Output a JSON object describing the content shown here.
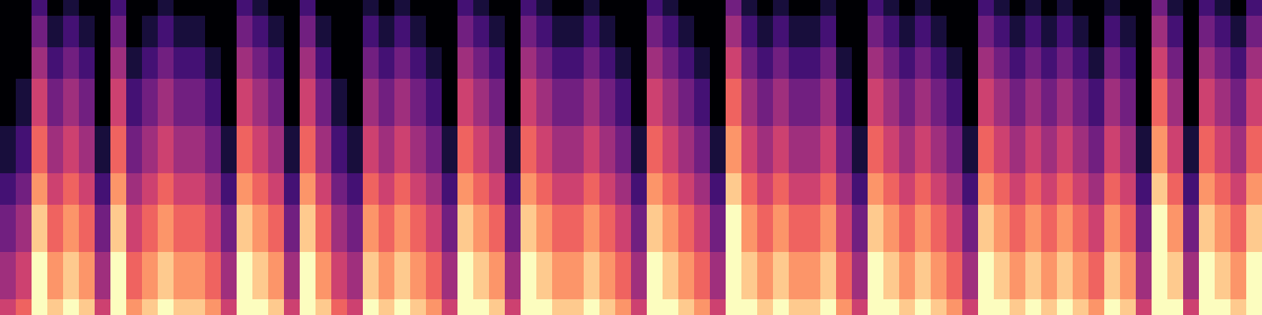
{
  "chart_data": {
    "type": "heatmap",
    "color": "magma",
    "zlim": [
      0,
      9
    ],
    "tick_labels": false,
    "cells": [
      [
        0,
        0,
        2,
        0,
        1,
        0,
        0,
        2,
        0,
        0,
        1,
        0,
        0,
        0,
        0,
        2,
        1,
        0,
        0,
        2,
        0,
        0,
        0,
        1,
        0,
        1,
        0,
        0,
        0,
        2,
        1,
        0,
        0,
        2,
        1,
        0,
        0,
        1,
        0,
        0,
        0,
        2,
        1,
        0,
        0,
        0,
        3,
        1,
        0,
        1,
        0,
        0,
        1,
        0,
        0,
        2,
        1,
        0,
        1,
        0,
        0,
        0,
        2,
        1,
        0,
        1,
        0,
        1,
        0,
        0,
        1,
        0,
        0,
        3,
        1,
        0,
        2,
        1,
        0,
        2
      ],
      [
        0,
        0,
        3,
        1,
        2,
        1,
        0,
        3,
        0,
        1,
        2,
        1,
        1,
        0,
        0,
        3,
        2,
        1,
        0,
        3,
        1,
        0,
        0,
        2,
        1,
        2,
        1,
        0,
        0,
        3,
        2,
        1,
        0,
        3,
        2,
        1,
        1,
        2,
        1,
        0,
        0,
        3,
        2,
        1,
        0,
        0,
        4,
        2,
        1,
        2,
        1,
        1,
        2,
        0,
        0,
        3,
        2,
        1,
        2,
        1,
        0,
        0,
        3,
        2,
        1,
        2,
        1,
        2,
        1,
        0,
        2,
        1,
        0,
        4,
        2,
        0,
        3,
        2,
        1,
        3
      ],
      [
        0,
        0,
        3,
        1,
        2,
        1,
        0,
        3,
        0,
        1,
        2,
        1,
        1,
        0,
        0,
        3,
        2,
        1,
        0,
        3,
        1,
        0,
        0,
        2,
        1,
        2,
        1,
        0,
        0,
        3,
        2,
        1,
        0,
        3,
        2,
        1,
        1,
        2,
        1,
        0,
        0,
        3,
        2,
        1,
        0,
        0,
        4,
        2,
        1,
        2,
        1,
        1,
        2,
        0,
        0,
        3,
        2,
        1,
        2,
        1,
        0,
        0,
        3,
        2,
        1,
        2,
        1,
        2,
        1,
        0,
        2,
        1,
        0,
        4,
        2,
        0,
        3,
        2,
        1,
        3
      ],
      [
        0,
        0,
        4,
        2,
        3,
        2,
        0,
        4,
        1,
        2,
        3,
        2,
        2,
        1,
        0,
        4,
        3,
        2,
        0,
        4,
        2,
        0,
        0,
        3,
        2,
        3,
        2,
        1,
        0,
        4,
        3,
        2,
        0,
        4,
        3,
        2,
        2,
        3,
        2,
        1,
        0,
        4,
        3,
        2,
        1,
        0,
        5,
        3,
        2,
        3,
        2,
        2,
        3,
        1,
        0,
        4,
        3,
        2,
        3,
        2,
        1,
        0,
        4,
        3,
        2,
        3,
        2,
        3,
        2,
        1,
        3,
        2,
        0,
        5,
        3,
        0,
        4,
        3,
        2,
        4
      ],
      [
        0,
        0,
        4,
        2,
        3,
        2,
        0,
        4,
        1,
        2,
        3,
        2,
        2,
        1,
        0,
        4,
        3,
        2,
        0,
        4,
        2,
        0,
        0,
        3,
        2,
        3,
        2,
        1,
        0,
        4,
        3,
        2,
        0,
        4,
        3,
        2,
        2,
        3,
        2,
        1,
        0,
        4,
        3,
        2,
        1,
        0,
        5,
        3,
        2,
        3,
        2,
        2,
        3,
        1,
        0,
        4,
        3,
        2,
        3,
        2,
        1,
        0,
        4,
        3,
        2,
        3,
        2,
        3,
        2,
        1,
        3,
        2,
        0,
        5,
        3,
        0,
        4,
        3,
        2,
        4
      ],
      [
        0,
        1,
        5,
        3,
        4,
        3,
        0,
        5,
        2,
        3,
        4,
        3,
        3,
        2,
        0,
        5,
        4,
        3,
        0,
        5,
        3,
        1,
        0,
        4,
        3,
        4,
        3,
        2,
        0,
        5,
        4,
        3,
        0,
        5,
        4,
        3,
        3,
        4,
        3,
        2,
        0,
        5,
        4,
        3,
        2,
        0,
        6,
        4,
        3,
        4,
        3,
        3,
        4,
        2,
        0,
        5,
        4,
        3,
        4,
        3,
        2,
        0,
        5,
        4,
        3,
        4,
        3,
        4,
        3,
        2,
        4,
        3,
        0,
        6,
        4,
        0,
        5,
        4,
        3,
        5
      ],
      [
        0,
        1,
        5,
        3,
        4,
        3,
        0,
        5,
        2,
        3,
        4,
        3,
        3,
        2,
        0,
        5,
        4,
        3,
        0,
        5,
        3,
        1,
        0,
        4,
        3,
        4,
        3,
        2,
        0,
        5,
        4,
        3,
        0,
        5,
        4,
        3,
        3,
        4,
        3,
        2,
        0,
        5,
        4,
        3,
        2,
        0,
        6,
        4,
        3,
        4,
        3,
        3,
        4,
        2,
        0,
        5,
        4,
        3,
        4,
        3,
        2,
        0,
        5,
        4,
        3,
        4,
        3,
        4,
        3,
        2,
        4,
        3,
        0,
        6,
        4,
        0,
        5,
        4,
        3,
        5
      ],
      [
        0,
        1,
        5,
        3,
        4,
        3,
        0,
        5,
        2,
        3,
        4,
        3,
        3,
        2,
        0,
        5,
        4,
        3,
        0,
        5,
        3,
        1,
        0,
        4,
        3,
        4,
        3,
        2,
        0,
        5,
        4,
        3,
        0,
        5,
        4,
        3,
        3,
        4,
        3,
        2,
        0,
        5,
        4,
        3,
        2,
        0,
        6,
        4,
        3,
        4,
        3,
        3,
        4,
        2,
        0,
        5,
        4,
        3,
        4,
        3,
        2,
        0,
        5,
        4,
        3,
        4,
        3,
        4,
        3,
        2,
        4,
        3,
        0,
        6,
        4,
        0,
        5,
        4,
        3,
        5
      ],
      [
        1,
        2,
        6,
        4,
        5,
        4,
        1,
        6,
        3,
        4,
        5,
        4,
        4,
        3,
        1,
        6,
        5,
        4,
        1,
        6,
        4,
        2,
        1,
        5,
        4,
        5,
        4,
        3,
        1,
        6,
        5,
        4,
        1,
        6,
        5,
        4,
        4,
        5,
        4,
        3,
        1,
        6,
        5,
        4,
        3,
        1,
        7,
        5,
        4,
        5,
        4,
        4,
        5,
        3,
        1,
        6,
        5,
        4,
        5,
        4,
        3,
        1,
        6,
        5,
        4,
        5,
        4,
        5,
        4,
        3,
        5,
        4,
        1,
        7,
        5,
        1,
        6,
        5,
        4,
        6
      ],
      [
        1,
        2,
        6,
        4,
        5,
        4,
        1,
        6,
        3,
        4,
        5,
        4,
        4,
        3,
        1,
        6,
        5,
        4,
        1,
        6,
        4,
        2,
        1,
        5,
        4,
        5,
        4,
        3,
        1,
        6,
        5,
        4,
        1,
        6,
        5,
        4,
        4,
        5,
        4,
        3,
        1,
        6,
        5,
        4,
        3,
        1,
        7,
        5,
        4,
        5,
        4,
        4,
        5,
        3,
        1,
        6,
        5,
        4,
        5,
        4,
        3,
        1,
        6,
        5,
        4,
        5,
        4,
        5,
        4,
        3,
        5,
        4,
        1,
        7,
        5,
        1,
        6,
        5,
        4,
        6
      ],
      [
        1,
        2,
        6,
        4,
        5,
        4,
        1,
        6,
        3,
        4,
        5,
        4,
        4,
        3,
        1,
        6,
        5,
        4,
        1,
        6,
        4,
        2,
        1,
        5,
        4,
        5,
        4,
        3,
        1,
        6,
        5,
        4,
        1,
        6,
        5,
        4,
        4,
        5,
        4,
        3,
        1,
        6,
        5,
        4,
        3,
        1,
        7,
        5,
        4,
        5,
        4,
        4,
        5,
        3,
        1,
        6,
        5,
        4,
        5,
        4,
        3,
        1,
        6,
        5,
        4,
        5,
        4,
        5,
        4,
        3,
        5,
        4,
        1,
        7,
        5,
        1,
        6,
        5,
        4,
        6
      ],
      [
        2,
        3,
        7,
        5,
        6,
        5,
        2,
        7,
        4,
        5,
        6,
        5,
        5,
        4,
        2,
        7,
        6,
        5,
        2,
        7,
        5,
        3,
        2,
        6,
        5,
        6,
        5,
        4,
        2,
        7,
        6,
        5,
        2,
        7,
        6,
        5,
        5,
        6,
        5,
        4,
        2,
        7,
        6,
        5,
        4,
        2,
        8,
        6,
        5,
        6,
        5,
        5,
        6,
        4,
        2,
        7,
        6,
        5,
        6,
        5,
        4,
        2,
        7,
        6,
        5,
        6,
        5,
        6,
        5,
        4,
        6,
        5,
        2,
        8,
        6,
        2,
        7,
        6,
        5,
        7
      ],
      [
        2,
        3,
        7,
        5,
        6,
        5,
        2,
        7,
        4,
        5,
        6,
        5,
        5,
        4,
        2,
        7,
        6,
        5,
        2,
        7,
        5,
        3,
        2,
        6,
        5,
        6,
        5,
        4,
        2,
        7,
        6,
        5,
        2,
        7,
        6,
        5,
        5,
        6,
        5,
        4,
        2,
        7,
        6,
        5,
        4,
        2,
        8,
        6,
        5,
        6,
        5,
        5,
        6,
        4,
        2,
        7,
        6,
        5,
        6,
        5,
        4,
        2,
        7,
        6,
        5,
        6,
        5,
        6,
        5,
        4,
        6,
        5,
        2,
        8,
        6,
        2,
        7,
        6,
        5,
        7
      ],
      [
        3,
        4,
        8,
        6,
        7,
        6,
        3,
        8,
        5,
        6,
        7,
        6,
        6,
        5,
        3,
        8,
        7,
        6,
        3,
        8,
        6,
        4,
        3,
        7,
        6,
        7,
        6,
        5,
        3,
        8,
        7,
        6,
        3,
        8,
        7,
        6,
        6,
        7,
        6,
        5,
        3,
        8,
        7,
        6,
        5,
        3,
        9,
        7,
        6,
        7,
        6,
        6,
        7,
        5,
        3,
        8,
        7,
        6,
        7,
        6,
        5,
        3,
        8,
        7,
        6,
        7,
        6,
        7,
        6,
        5,
        7,
        6,
        3,
        9,
        7,
        3,
        8,
        7,
        6,
        8
      ],
      [
        3,
        4,
        8,
        6,
        7,
        6,
        3,
        8,
        5,
        6,
        7,
        6,
        6,
        5,
        3,
        8,
        7,
        6,
        3,
        8,
        6,
        4,
        3,
        7,
        6,
        7,
        6,
        5,
        3,
        8,
        7,
        6,
        3,
        8,
        7,
        6,
        6,
        7,
        6,
        5,
        3,
        8,
        7,
        6,
        5,
        3,
        9,
        7,
        6,
        7,
        6,
        6,
        7,
        5,
        3,
        8,
        7,
        6,
        7,
        6,
        5,
        3,
        8,
        7,
        6,
        7,
        6,
        7,
        6,
        5,
        7,
        6,
        3,
        9,
        7,
        3,
        8,
        7,
        6,
        8
      ],
      [
        3,
        4,
        8,
        6,
        7,
        6,
        3,
        8,
        5,
        6,
        7,
        6,
        6,
        5,
        3,
        8,
        7,
        6,
        3,
        8,
        6,
        4,
        3,
        7,
        6,
        7,
        6,
        5,
        3,
        8,
        7,
        6,
        3,
        8,
        7,
        6,
        6,
        7,
        6,
        5,
        3,
        8,
        7,
        6,
        5,
        3,
        9,
        7,
        6,
        7,
        6,
        6,
        7,
        5,
        3,
        8,
        7,
        6,
        7,
        6,
        5,
        3,
        8,
        7,
        6,
        7,
        6,
        7,
        6,
        5,
        7,
        6,
        3,
        9,
        7,
        3,
        8,
        7,
        6,
        8
      ],
      [
        4,
        5,
        9,
        7,
        8,
        7,
        4,
        9,
        6,
        7,
        8,
        7,
        7,
        6,
        4,
        9,
        8,
        7,
        4,
        9,
        7,
        5,
        4,
        8,
        7,
        8,
        7,
        6,
        4,
        9,
        8,
        7,
        4,
        9,
        8,
        7,
        7,
        8,
        7,
        6,
        4,
        9,
        8,
        7,
        6,
        4,
        9,
        8,
        7,
        8,
        7,
        7,
        8,
        6,
        4,
        9,
        8,
        7,
        8,
        7,
        6,
        4,
        9,
        8,
        7,
        8,
        7,
        8,
        7,
        6,
        8,
        7,
        4,
        9,
        8,
        4,
        9,
        8,
        7,
        9
      ],
      [
        4,
        5,
        9,
        7,
        8,
        7,
        4,
        9,
        6,
        7,
        8,
        7,
        7,
        6,
        4,
        9,
        8,
        7,
        4,
        9,
        7,
        5,
        4,
        8,
        7,
        8,
        7,
        6,
        4,
        9,
        8,
        7,
        4,
        9,
        8,
        7,
        7,
        8,
        7,
        6,
        4,
        9,
        8,
        7,
        6,
        4,
        9,
        8,
        7,
        8,
        7,
        7,
        8,
        6,
        4,
        9,
        8,
        7,
        8,
        7,
        6,
        4,
        9,
        8,
        7,
        8,
        7,
        8,
        7,
        6,
        8,
        7,
        4,
        9,
        8,
        4,
        9,
        8,
        7,
        9
      ],
      [
        4,
        5,
        9,
        7,
        8,
        7,
        4,
        9,
        6,
        7,
        8,
        7,
        7,
        6,
        4,
        9,
        8,
        7,
        4,
        9,
        7,
        5,
        4,
        8,
        7,
        8,
        7,
        6,
        4,
        9,
        8,
        7,
        4,
        9,
        8,
        7,
        7,
        8,
        7,
        6,
        4,
        9,
        8,
        7,
        6,
        4,
        9,
        8,
        7,
        8,
        7,
        7,
        8,
        6,
        4,
        9,
        8,
        7,
        8,
        7,
        6,
        4,
        9,
        8,
        7,
        8,
        7,
        8,
        7,
        6,
        8,
        7,
        4,
        9,
        8,
        4,
        9,
        8,
        7,
        9
      ],
      [
        5,
        6,
        9,
        8,
        9,
        8,
        5,
        9,
        7,
        8,
        9,
        8,
        8,
        7,
        5,
        9,
        9,
        8,
        5,
        9,
        8,
        6,
        5,
        9,
        8,
        9,
        8,
        7,
        5,
        9,
        9,
        8,
        5,
        9,
        9,
        8,
        8,
        9,
        8,
        7,
        5,
        9,
        9,
        8,
        7,
        5,
        9,
        9,
        8,
        9,
        8,
        8,
        9,
        7,
        5,
        9,
        9,
        8,
        9,
        8,
        7,
        5,
        9,
        9,
        8,
        9,
        8,
        9,
        8,
        7,
        9,
        8,
        5,
        9,
        9,
        5,
        9,
        9,
        8,
        9
      ]
    ]
  }
}
